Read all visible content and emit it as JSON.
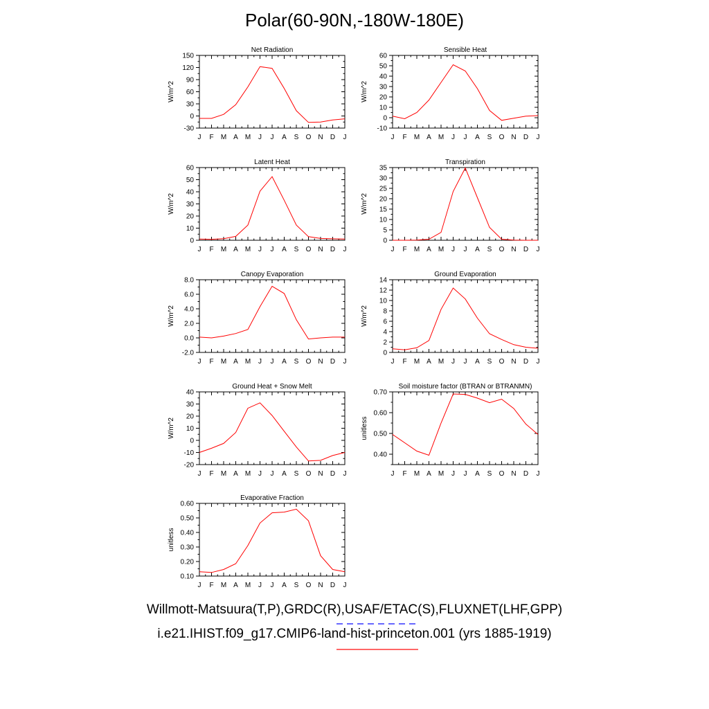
{
  "title": "Polar(60-90N,-180W-180E)",
  "footer": {
    "line1": "Willmott-Matsuura(T,P),GRDC(R),USAF/ETAC(S),FLUXNET(LHF,GPP)",
    "line2": "i.e21.IHIST.f09_g17.CMIP6-land-hist-princeton.001 (yrs 1885-1919)"
  },
  "colors": {
    "series": "#ff0000",
    "obs_dash": "#6666ff",
    "model_line": "#ff6666",
    "axis": "#000000"
  },
  "chart_data": [
    {
      "type": "line",
      "title": "Net Radiation",
      "ylabel": "W/m^2",
      "categories": [
        "J",
        "F",
        "M",
        "A",
        "M",
        "J",
        "J",
        "A",
        "S",
        "O",
        "N",
        "D",
        "J"
      ],
      "ylim": [
        -30,
        150
      ],
      "yticks": [
        -30,
        0,
        30,
        60,
        90,
        120,
        150
      ],
      "ytick_labels": [
        "-30",
        "0",
        "30",
        "60",
        "90",
        "120",
        "150"
      ],
      "series": [
        {
          "values": [
            -6,
            -6,
            4,
            28,
            72,
            122,
            118,
            68,
            13,
            -16,
            -15,
            -10,
            -7
          ]
        }
      ]
    },
    {
      "type": "line",
      "title": "Sensible Heat",
      "ylabel": "W/m^2",
      "categories": [
        "J",
        "F",
        "M",
        "A",
        "M",
        "J",
        "J",
        "A",
        "S",
        "O",
        "N",
        "D",
        "J"
      ],
      "ylim": [
        -10,
        60
      ],
      "yticks": [
        -10,
        0,
        10,
        20,
        30,
        40,
        50,
        60
      ],
      "ytick_labels": [
        "-10",
        "0",
        "10",
        "20",
        "30",
        "40",
        "50",
        "60"
      ],
      "series": [
        {
          "values": [
            1.5,
            -1,
            5,
            17,
            34,
            51,
            45,
            28,
            7,
            -2.5,
            -0.5,
            1.5,
            2
          ]
        }
      ]
    },
    {
      "type": "line",
      "title": "Latent Heat",
      "ylabel": "W/m^2",
      "categories": [
        "J",
        "F",
        "M",
        "A",
        "M",
        "J",
        "J",
        "A",
        "S",
        "O",
        "N",
        "D",
        "J"
      ],
      "ylim": [
        0,
        60
      ],
      "yticks": [
        0,
        10,
        20,
        30,
        40,
        50,
        60
      ],
      "ytick_labels": [
        "0",
        "10",
        "20",
        "30",
        "40",
        "50",
        "60"
      ],
      "series": [
        {
          "values": [
            1,
            0.8,
            1.3,
            3.2,
            12.5,
            40.5,
            52.5,
            33,
            12.5,
            3,
            1.5,
            1.2,
            1
          ]
        }
      ]
    },
    {
      "type": "line",
      "title": "Transpiration",
      "ylabel": "W/m^2",
      "categories": [
        "J",
        "F",
        "M",
        "A",
        "M",
        "J",
        "J",
        "A",
        "S",
        "O",
        "N",
        "D",
        "J"
      ],
      "ylim": [
        0,
        35
      ],
      "yticks": [
        0,
        5,
        10,
        15,
        20,
        25,
        30,
        35
      ],
      "ytick_labels": [
        "0",
        "5",
        "10",
        "15",
        "20",
        "25",
        "30",
        "35"
      ],
      "series": [
        {
          "values": [
            0,
            0,
            0.1,
            0.5,
            3.8,
            23.5,
            34.8,
            20.5,
            6.2,
            0.5,
            0.1,
            0,
            0
          ]
        }
      ]
    },
    {
      "type": "line",
      "title": "Canopy Evaporation",
      "ylabel": "W/m^2",
      "categories": [
        "J",
        "F",
        "M",
        "A",
        "M",
        "J",
        "J",
        "A",
        "S",
        "O",
        "N",
        "D",
        "J"
      ],
      "ylim": [
        -2,
        8
      ],
      "yticks": [
        -2,
        0,
        2,
        4,
        6,
        8
      ],
      "ytick_labels": [
        "-2.0",
        "0.0",
        "2.0",
        "4.0",
        "6.0",
        "8.0"
      ],
      "series": [
        {
          "values": [
            0.1,
            0,
            0.25,
            0.6,
            1.15,
            4.3,
            7.1,
            6.1,
            2.5,
            -0.15,
            0,
            0.1,
            0.1
          ]
        }
      ]
    },
    {
      "type": "line",
      "title": "Ground Evaporation",
      "ylabel": "W/m^2",
      "categories": [
        "J",
        "F",
        "M",
        "A",
        "M",
        "J",
        "J",
        "A",
        "S",
        "O",
        "N",
        "D",
        "J"
      ],
      "ylim": [
        0,
        14
      ],
      "yticks": [
        0,
        2,
        4,
        6,
        8,
        10,
        12,
        14
      ],
      "ytick_labels": [
        "0",
        "2",
        "4",
        "6",
        "8",
        "10",
        "12",
        "14"
      ],
      "series": [
        {
          "values": [
            0.7,
            0.5,
            0.9,
            2.3,
            8.3,
            12.4,
            10.3,
            6.6,
            3.6,
            2.5,
            1.5,
            1,
            0.8
          ]
        }
      ]
    },
    {
      "type": "line",
      "title": "Ground Heat + Snow Melt",
      "ylabel": "W/m^2",
      "categories": [
        "J",
        "F",
        "M",
        "A",
        "M",
        "J",
        "J",
        "A",
        "S",
        "O",
        "N",
        "D",
        "J"
      ],
      "ylim": [
        -20,
        40
      ],
      "yticks": [
        -20,
        -10,
        0,
        10,
        20,
        30,
        40
      ],
      "ytick_labels": [
        "-20",
        "-10",
        "0",
        "10",
        "20",
        "30",
        "40"
      ],
      "series": [
        {
          "values": [
            -10,
            -6.5,
            -2.5,
            6.5,
            26.5,
            31,
            20.5,
            7.5,
            -5.5,
            -17,
            -16.5,
            -12.5,
            -10
          ]
        }
      ]
    },
    {
      "type": "line",
      "title": "Soil moisture factor (BTRAN or BTRANMN)",
      "ylabel": "unitless",
      "categories": [
        "J",
        "F",
        "M",
        "A",
        "M",
        "J",
        "J",
        "A",
        "S",
        "O",
        "N",
        "D",
        "J"
      ],
      "ylim": [
        0.35,
        0.7
      ],
      "yticks": [
        0.4,
        0.5,
        0.6,
        0.7
      ],
      "ytick_labels": [
        "0.40",
        "0.50",
        "0.60",
        "0.70"
      ],
      "series": [
        {
          "values": [
            0.495,
            0.455,
            0.415,
            0.395,
            0.55,
            0.69,
            0.688,
            0.67,
            0.648,
            0.665,
            0.62,
            0.545,
            0.495
          ]
        }
      ]
    },
    {
      "type": "line",
      "title": "Evaporative Fraction",
      "ylabel": "unitless",
      "categories": [
        "J",
        "F",
        "M",
        "A",
        "M",
        "J",
        "J",
        "A",
        "S",
        "O",
        "N",
        "D",
        "J"
      ],
      "ylim": [
        0.1,
        0.6
      ],
      "yticks": [
        0.1,
        0.2,
        0.3,
        0.4,
        0.5,
        0.6
      ],
      "ytick_labels": [
        "0.10",
        "0.20",
        "0.30",
        "0.40",
        "0.50",
        "0.60"
      ],
      "series": [
        {
          "values": [
            0.13,
            0.125,
            0.145,
            0.185,
            0.31,
            0.465,
            0.535,
            0.54,
            0.56,
            0.48,
            0.24,
            0.145,
            0.13
          ]
        }
      ]
    }
  ]
}
